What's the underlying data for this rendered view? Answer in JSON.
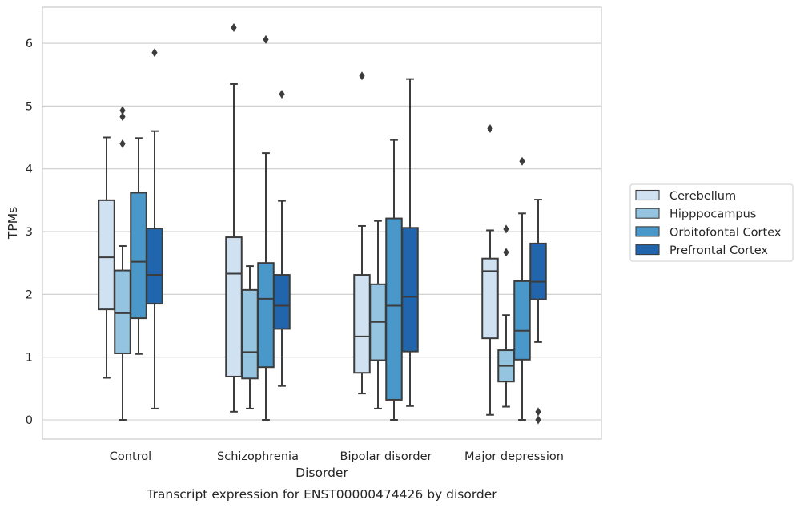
{
  "chart_data": {
    "type": "boxplot",
    "title": "",
    "caption": "Transcript expression for ENST00000474426 by disorder",
    "xlabel": "Disorder",
    "ylabel": "TPMs",
    "ylim": [
      -0.3,
      6.6
    ],
    "yticks": [
      0,
      1,
      2,
      3,
      4,
      5,
      6
    ],
    "grid": "horizontal",
    "legend_position": "right",
    "categories": [
      "Control",
      "Schizophrenia",
      "Bipolar disorder",
      "Major depression"
    ],
    "series": [
      {
        "name": "Cerebellum",
        "color": "#d0e1f2",
        "boxes": [
          {
            "whislo": 0.67,
            "q1": 1.76,
            "med": 2.59,
            "q3": 3.5,
            "whishi": 4.5,
            "fliers": []
          },
          {
            "whislo": 0.13,
            "q1": 0.69,
            "med": 2.33,
            "q3": 2.91,
            "whishi": 5.35,
            "fliers": [
              6.25
            ]
          },
          {
            "whislo": 0.42,
            "q1": 0.75,
            "med": 1.33,
            "q3": 2.31,
            "whishi": 3.09,
            "fliers": [
              5.48
            ]
          },
          {
            "whislo": 0.08,
            "q1": 1.3,
            "med": 2.37,
            "q3": 2.57,
            "whishi": 3.02,
            "fliers": [
              4.64
            ]
          }
        ]
      },
      {
        "name": "Hipppocampus",
        "color": "#94c4df",
        "boxes": [
          {
            "whislo": 0.0,
            "q1": 1.06,
            "med": 1.7,
            "q3": 2.38,
            "whishi": 2.77,
            "fliers": [
              4.4,
              4.83,
              4.93
            ]
          },
          {
            "whislo": 0.18,
            "q1": 0.66,
            "med": 1.08,
            "q3": 2.07,
            "whishi": 2.45,
            "fliers": []
          },
          {
            "whislo": 0.18,
            "q1": 0.95,
            "med": 1.56,
            "q3": 2.16,
            "whishi": 3.17,
            "fliers": []
          },
          {
            "whislo": 0.21,
            "q1": 0.61,
            "med": 0.86,
            "q3": 1.11,
            "whishi": 1.67,
            "fliers": [
              2.67,
              3.04
            ]
          }
        ]
      },
      {
        "name": "Orbitofontal Cortex",
        "color": "#4a98c9",
        "boxes": [
          {
            "whislo": 1.05,
            "q1": 1.62,
            "med": 2.52,
            "q3": 3.62,
            "whishi": 4.49,
            "fliers": []
          },
          {
            "whislo": 0.0,
            "q1": 0.84,
            "med": 1.93,
            "q3": 2.5,
            "whishi": 4.25,
            "fliers": [
              6.06
            ]
          },
          {
            "whislo": 0.0,
            "q1": 0.32,
            "med": 1.82,
            "q3": 3.21,
            "whishi": 4.46,
            "fliers": []
          },
          {
            "whislo": 0.0,
            "q1": 0.96,
            "med": 1.42,
            "q3": 2.21,
            "whishi": 3.29,
            "fliers": [
              4.12
            ]
          }
        ]
      },
      {
        "name": "Prefrontal Cortex",
        "color": "#2166ac",
        "boxes": [
          {
            "whislo": 0.18,
            "q1": 1.85,
            "med": 2.31,
            "q3": 3.05,
            "whishi": 4.6,
            "fliers": [
              5.85
            ]
          },
          {
            "whislo": 0.54,
            "q1": 1.45,
            "med": 1.82,
            "q3": 2.31,
            "whishi": 3.49,
            "fliers": [
              5.19
            ]
          },
          {
            "whislo": 0.22,
            "q1": 1.09,
            "med": 1.96,
            "q3": 3.06,
            "whishi": 5.43,
            "fliers": []
          },
          {
            "whislo": 1.24,
            "q1": 1.92,
            "med": 2.2,
            "q3": 2.81,
            "whishi": 3.51,
            "fliers": [
              0.0,
              0.13
            ]
          }
        ]
      }
    ]
  }
}
